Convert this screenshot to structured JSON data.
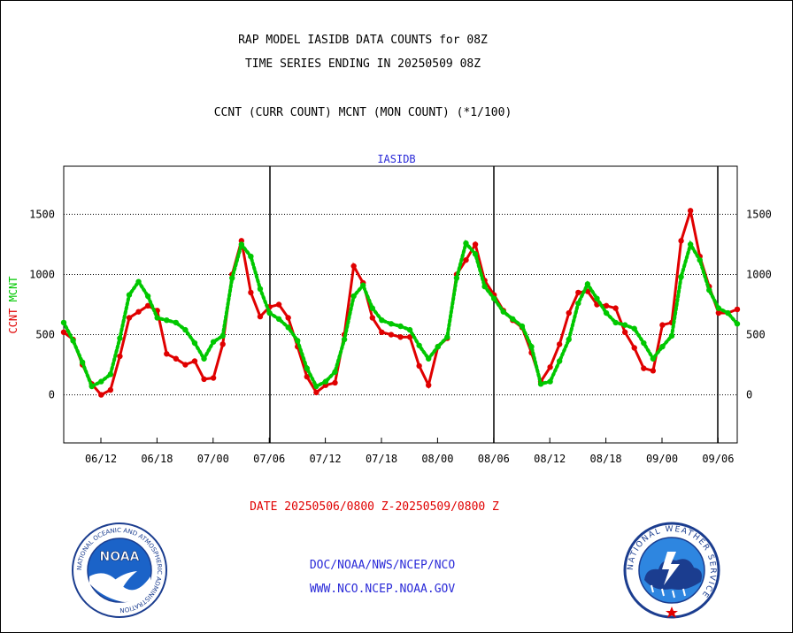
{
  "titles": {
    "line1": "RAP MODEL IASIDB DATA COUNTS for 08Z",
    "line2": "TIME SERIES ENDING IN 20250509 08Z",
    "line3": "CCNT (CURR COUNT) MCNT (MON COUNT) (*1/100)"
  },
  "footer": {
    "date_range": "DATE 20250506/0800 Z-20250509/0800 Z",
    "credit1": "DOC/NOAA/NWS/NCEP/NCO",
    "credit2": "WWW.NCO.NCEP.NOAA.GOV"
  },
  "logos": {
    "noaa": {
      "text": "NOAA",
      "ring_text": "NATIONAL OCEANIC AND ATMOSPHERIC ADMINISTRATION",
      "icon": "noaa-logo"
    },
    "nws": {
      "ring_text": "NATIONAL WEATHER SERVICE",
      "icon": "nws-logo"
    }
  },
  "chart_data": {
    "type": "line",
    "title": "IASIDB",
    "ylabel_parts": [
      {
        "text": "CCNT",
        "color": "#e00000"
      },
      {
        "text": "MCNT",
        "color": "#00c800"
      }
    ],
    "ylim": [
      -400,
      1900
    ],
    "yticks": [
      0,
      500,
      1000,
      1500
    ],
    "xtick_labels": [
      "06/12",
      "06/18",
      "07/00",
      "07/06",
      "07/12",
      "07/18",
      "08/00",
      "08/06",
      "08/12",
      "08/18",
      "09/00",
      "09/06"
    ],
    "grid": true,
    "series": [
      {
        "name": "CCNT",
        "color": "#e00000",
        "line_style": "solid",
        "values": [
          520,
          460,
          250,
          90,
          0,
          40,
          320,
          640,
          690,
          740,
          700,
          340,
          300,
          250,
          280,
          130,
          140,
          420,
          1000,
          1280,
          850,
          650,
          730,
          750,
          640,
          400,
          150,
          20,
          80,
          100,
          500,
          1070,
          930,
          640,
          520,
          500,
          480,
          480,
          240,
          80,
          400,
          470,
          1000,
          1120,
          1250,
          950,
          830,
          700,
          620,
          560,
          350,
          110,
          230,
          420,
          680,
          850,
          860,
          750,
          740,
          720,
          520,
          390,
          220,
          200,
          580,
          600,
          1280,
          1530,
          1150,
          900,
          680,
          680,
          710
        ]
      },
      {
        "name": "MCNT",
        "color": "#00c800",
        "line_style": "dotted",
        "values": [
          600,
          450,
          270,
          70,
          110,
          170,
          470,
          830,
          940,
          820,
          640,
          620,
          600,
          540,
          430,
          300,
          440,
          490,
          970,
          1250,
          1150,
          880,
          680,
          630,
          560,
          450,
          220,
          70,
          110,
          190,
          460,
          820,
          910,
          720,
          620,
          590,
          570,
          540,
          410,
          300,
          400,
          480,
          970,
          1260,
          1170,
          900,
          800,
          690,
          630,
          570,
          400,
          90,
          110,
          280,
          460,
          760,
          920,
          800,
          680,
          600,
          580,
          550,
          430,
          300,
          400,
          490,
          980,
          1250,
          1120,
          870,
          720,
          680,
          590
        ]
      }
    ]
  }
}
